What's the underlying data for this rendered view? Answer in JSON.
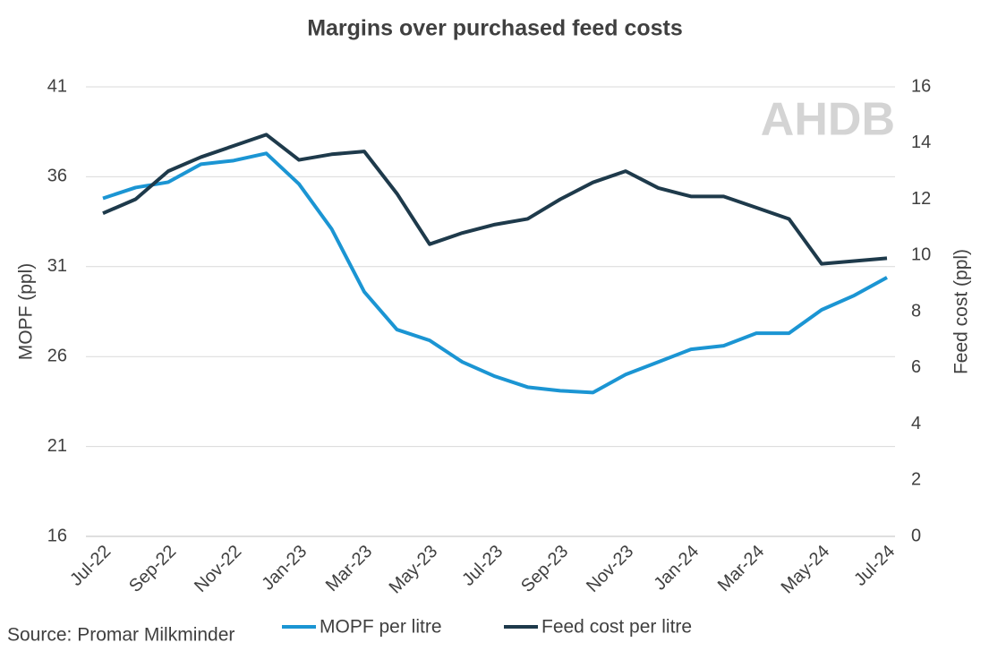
{
  "chart_data": {
    "type": "line",
    "title": "Margins over purchased feed costs",
    "ylabel": "MOPF (ppl)",
    "y2label": "Feed cost (ppl)",
    "source": "Source: Promar Milkminder",
    "logo": "AHDB",
    "categories": [
      "Jul-22",
      null,
      "Sep-22",
      null,
      "Nov-22",
      null,
      "Jan-23",
      null,
      "Mar-23",
      null,
      "May-23",
      null,
      "Jul-23",
      null,
      "Sep-23",
      null,
      "Nov-23",
      null,
      "Jan-24",
      null,
      "Mar-24",
      null,
      "May-24",
      null,
      "Jul-24"
    ],
    "series": [
      {
        "name": "MOPF per litre",
        "color": "#1b95d3",
        "values": [
          34.8,
          35.4,
          35.7,
          36.7,
          36.9,
          37.3,
          35.6,
          33.1,
          29.6,
          27.5,
          26.9,
          25.7,
          24.9,
          24.3,
          24.1,
          24.0,
          25.0,
          25.7,
          26.4,
          26.6,
          27.3,
          27.3,
          28.6,
          29.4,
          30.4
        ]
      },
      {
        "name": "Feed cost per litre",
        "color": "#1e3a4b",
        "axis": "y2",
        "values": [
          11.5,
          12.0,
          13.0,
          13.5,
          13.9,
          14.3,
          13.4,
          13.6,
          13.7,
          12.2,
          10.4,
          10.8,
          11.1,
          11.3,
          12.0,
          12.6,
          13.0,
          12.4,
          12.1,
          12.1,
          11.7,
          11.3,
          9.7,
          9.8,
          9.9
        ]
      }
    ],
    "ylim": [
      16,
      41
    ],
    "yticks": [
      16,
      21,
      26,
      31,
      36,
      41
    ],
    "y2lim": [
      0,
      16
    ],
    "y2ticks": [
      0,
      2,
      4,
      6,
      8,
      10,
      12,
      14,
      16
    ],
    "grid": true,
    "legend": "bottom"
  }
}
